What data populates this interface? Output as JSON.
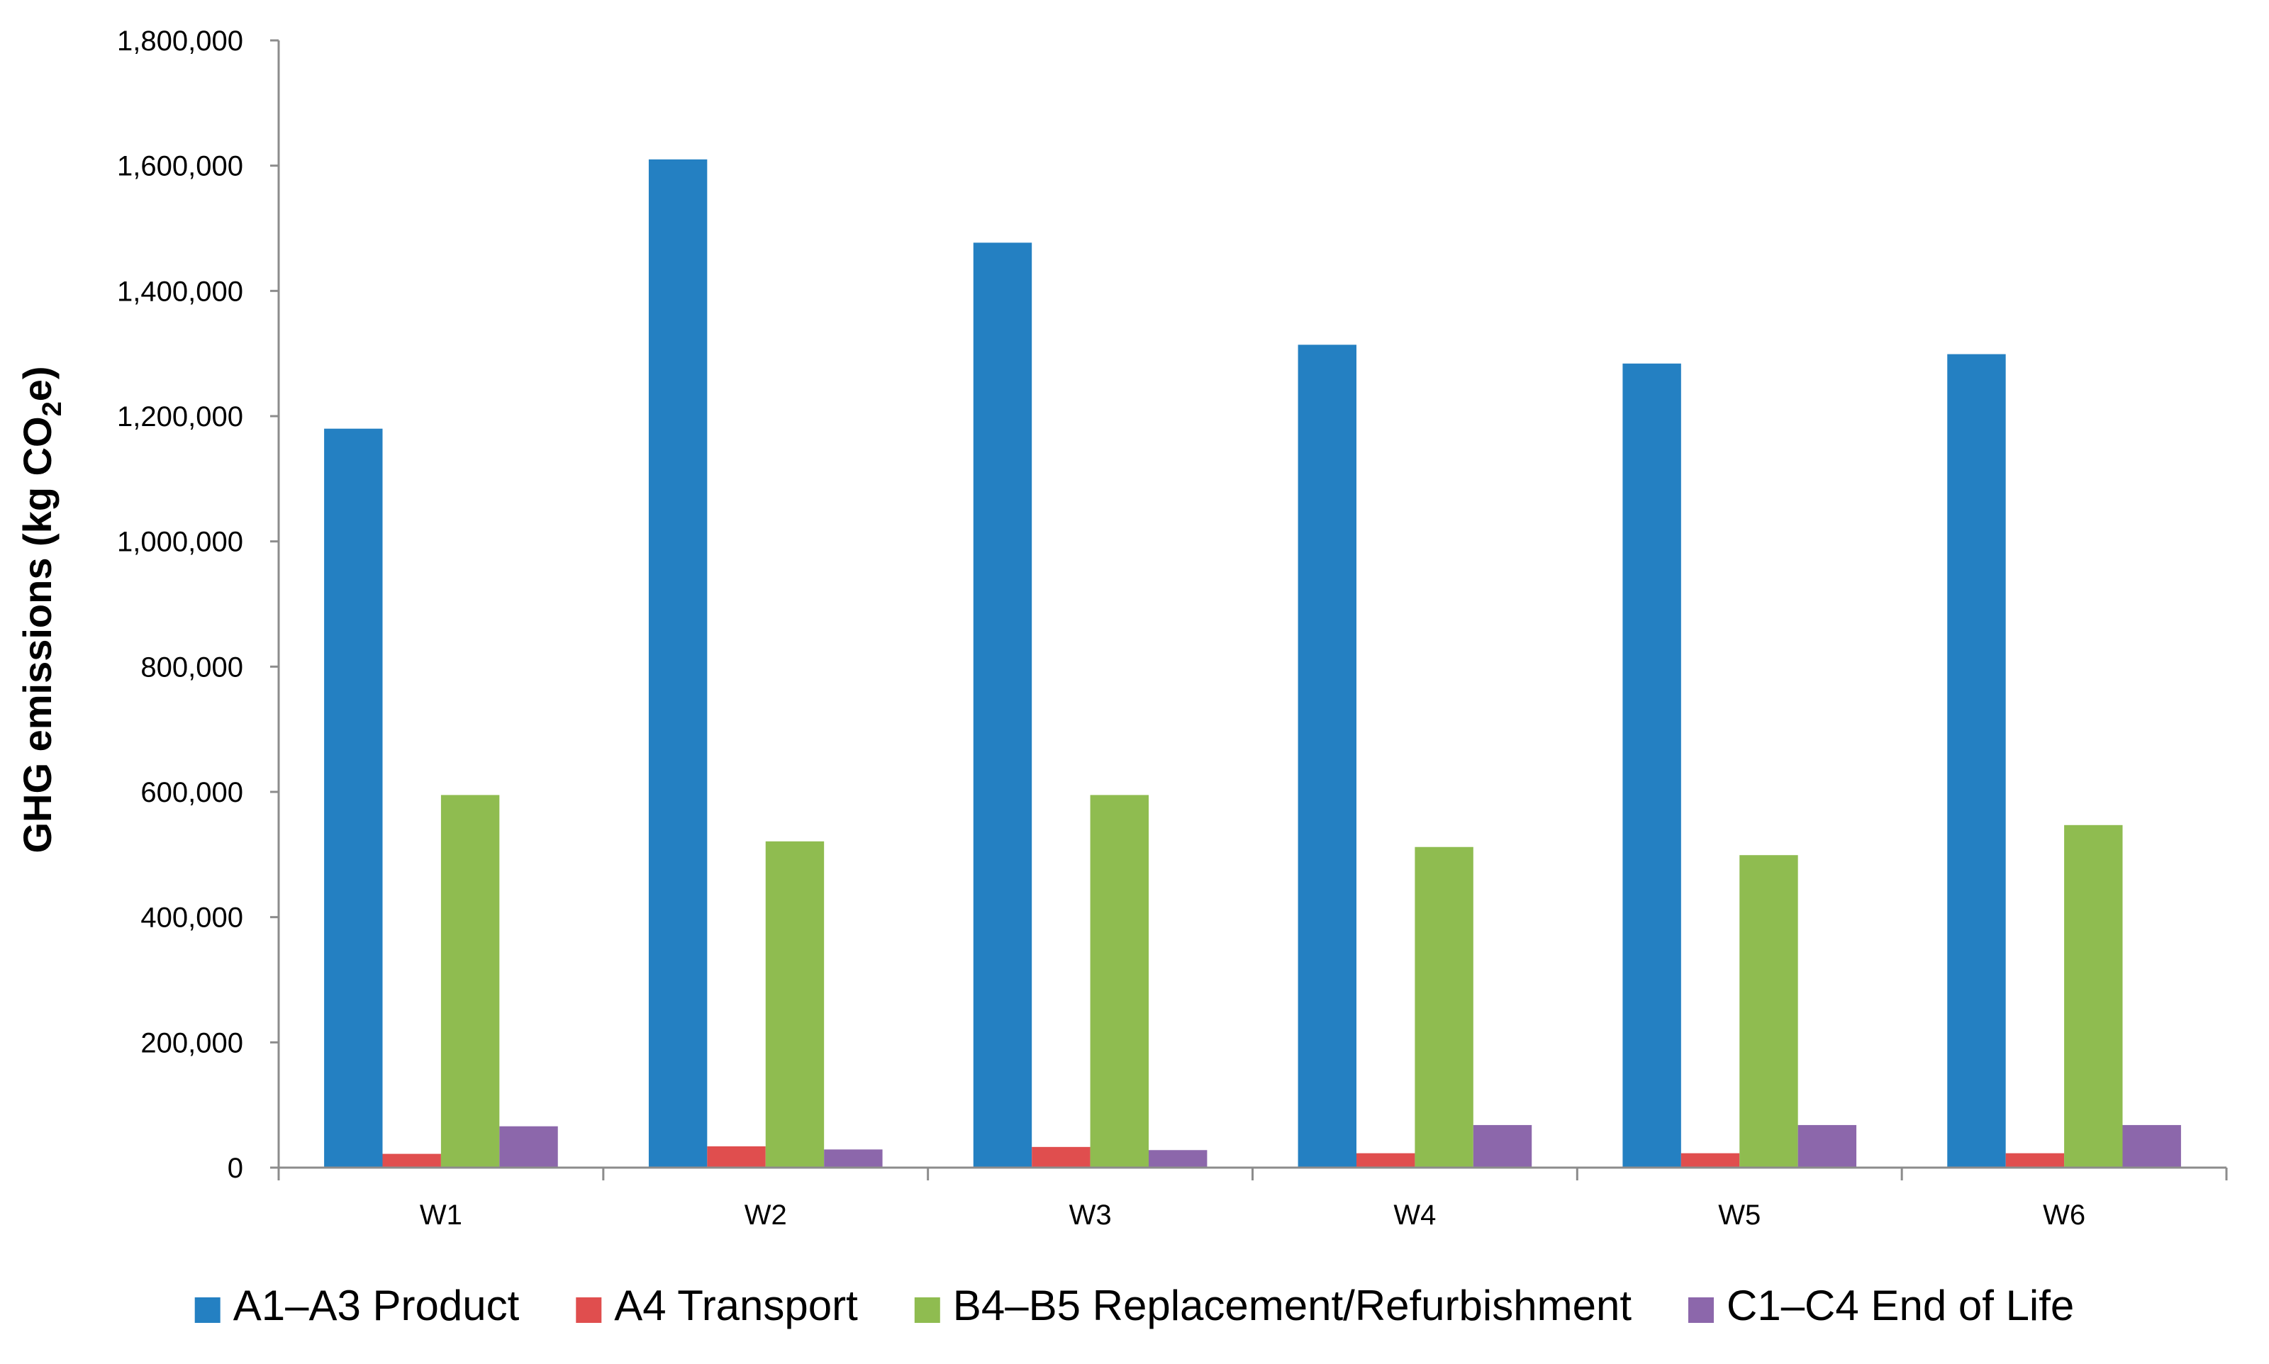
{
  "chart_data": {
    "type": "bar",
    "title": "",
    "xlabel": "",
    "ylabel": {
      "main": "GHG emissions (kg CO",
      "subscript": "2",
      "suffix": "e)"
    },
    "ylim": [
      0,
      1800000
    ],
    "yticks": [
      0,
      200000,
      400000,
      600000,
      800000,
      1000000,
      1200000,
      1400000,
      1600000,
      1800000
    ],
    "ytick_labels": [
      "0",
      "200,000",
      "400,000",
      "600,000",
      "800,000",
      "1,000,000",
      "1,200,000",
      "1,400,000",
      "1,600,000",
      "1,800,000"
    ],
    "categories": [
      "W1",
      "W2",
      "W3",
      "W4",
      "W5",
      "W6"
    ],
    "series": [
      {
        "name": "A1–A3 Product",
        "color": "#2480C2",
        "values": [
          1180000,
          1610000,
          1477000,
          1314000,
          1284000,
          1299000
        ]
      },
      {
        "name": "A4 Transport",
        "color": "#E04E4E",
        "values": [
          22000,
          34000,
          33000,
          23000,
          23000,
          23000
        ]
      },
      {
        "name": "B4–B5 Replacement/Refurbishment",
        "color": "#8FBC50",
        "values": [
          595000,
          521000,
          595000,
          512000,
          499000,
          547000
        ]
      },
      {
        "name": "C1–C4 End of Life",
        "color": "#8C67AB",
        "values": [
          66000,
          29000,
          28000,
          68000,
          68000,
          68000
        ]
      }
    ],
    "grid": false,
    "legend_position": "bottom"
  }
}
